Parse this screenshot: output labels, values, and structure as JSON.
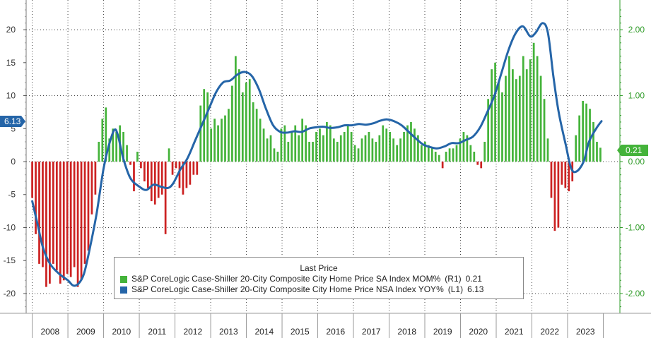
{
  "chart_data": {
    "type": "bar+line",
    "title": "",
    "years": [
      "2008",
      "2009",
      "2010",
      "2011",
      "2012",
      "2013",
      "2014",
      "2015",
      "2016",
      "2017",
      "2018",
      "2019",
      "2020",
      "2021",
      "2022",
      "2023"
    ],
    "left_axis": {
      "ticks": [
        20,
        15,
        10,
        5,
        0,
        -5,
        -10,
        -15,
        -20
      ],
      "tick_labels": [
        "20",
        "15",
        "10",
        "5",
        "0",
        "-5",
        "-10",
        "-15",
        "-20"
      ],
      "range": [
        -23,
        24.5
      ]
    },
    "right_axis": {
      "ticks": [
        2.0,
        1.0,
        0.0,
        -1.0,
        -2.0
      ],
      "tick_labels": [
        "2.00",
        "1.00",
        "0.00",
        "-1.00",
        "-2.00"
      ],
      "range": [
        -2.3,
        2.45
      ]
    },
    "legend": {
      "title": "Last Price",
      "items": [
        {
          "name": "S&P CoreLogic Case-Shiller 20-City Composite City Home Price SA Index MOM%",
          "axis": "(R1)",
          "last": "0.21",
          "color": "#44b33a"
        },
        {
          "name": "S&P CoreLogic Case-Shiller 20-City Composite City Home Price NSA Index YOY%",
          "axis": "(L1)",
          "last": "6.13",
          "color": "#2565a8"
        }
      ]
    },
    "series": [
      {
        "name": "MOM% (R1)",
        "axis": "right",
        "kind": "bar",
        "positive_color": "#44b33a",
        "negative_color": "#cc2222",
        "values": [
          -0.55,
          -1.1,
          -1.55,
          -1.6,
          -1.9,
          -1.85,
          -1.55,
          -1.65,
          -1.85,
          -1.8,
          -1.7,
          -1.75,
          -1.6,
          -1.9,
          -1.8,
          -1.55,
          -1.35,
          -0.8,
          -0.5,
          0.3,
          0.65,
          0.82,
          0.35,
          0.5,
          0.45,
          0.55,
          0.45,
          0.25,
          -0.05,
          -0.45,
          0.15,
          -0.1,
          -0.3,
          -0.4,
          -0.6,
          -0.65,
          -0.55,
          -0.5,
          -1.1,
          0.2,
          -0.2,
          -0.1,
          -0.4,
          -0.5,
          -0.4,
          -0.35,
          -0.2,
          -0.2,
          0.85,
          1.1,
          1.05,
          0.5,
          0.65,
          0.55,
          0.65,
          0.7,
          0.8,
          1.15,
          1.6,
          1.4,
          1.05,
          1.2,
          1.25,
          0.9,
          0.8,
          0.65,
          0.5,
          0.35,
          0.4,
          0.2,
          0.15,
          0.5,
          0.55,
          0.3,
          0.45,
          0.55,
          0.4,
          0.65,
          0.55,
          0.3,
          0.3,
          0.45,
          0.5,
          0.4,
          0.6,
          0.55,
          0.35,
          0.3,
          0.4,
          0.45,
          0.55,
          0.45,
          0.25,
          0.2,
          0.35,
          0.4,
          0.45,
          0.35,
          0.3,
          0.4,
          0.55,
          0.5,
          0.45,
          0.35,
          0.25,
          0.35,
          0.45,
          0.55,
          0.6,
          0.5,
          0.4,
          0.25,
          0.3,
          0.25,
          0.2,
          0.15,
          0.1,
          -0.1,
          0.15,
          0.2,
          0.2,
          0.25,
          0.35,
          0.45,
          0.4,
          0.25,
          0.15,
          -0.05,
          -0.1,
          0.3,
          0.95,
          1.4,
          1.5,
          1.2,
          1.05,
          1.3,
          1.6,
          1.4,
          1.25,
          1.3,
          1.6,
          1.4,
          1.55,
          1.8,
          1.6,
          1.3,
          0.95,
          0.35,
          -0.55,
          -1.05,
          -1.0,
          -0.35,
          -0.4,
          -0.45,
          -0.3,
          0.4,
          0.7,
          0.92,
          0.88,
          0.8,
          0.6,
          0.3,
          0.21
        ]
      },
      {
        "name": "YOY% (L1)",
        "axis": "left",
        "kind": "line",
        "color": "#2565a8",
        "points": [
          [
            2008.0,
            -6.0
          ],
          [
            2008.15,
            -9.5
          ],
          [
            2008.3,
            -13.0
          ],
          [
            2008.5,
            -15.5
          ],
          [
            2008.75,
            -17.0
          ],
          [
            2009.0,
            -18.0
          ],
          [
            2009.15,
            -18.8
          ],
          [
            2009.3,
            -18.5
          ],
          [
            2009.45,
            -17.0
          ],
          [
            2009.6,
            -13.5
          ],
          [
            2009.8,
            -8.0
          ],
          [
            2010.0,
            -1.0
          ],
          [
            2010.15,
            2.5
          ],
          [
            2010.3,
            4.8
          ],
          [
            2010.4,
            4.0
          ],
          [
            2010.55,
            0.5
          ],
          [
            2010.75,
            -2.5
          ],
          [
            2011.0,
            -3.8
          ],
          [
            2011.2,
            -4.3
          ],
          [
            2011.4,
            -3.5
          ],
          [
            2011.6,
            -3.8
          ],
          [
            2011.8,
            -4.0
          ],
          [
            2011.95,
            -3.3
          ],
          [
            2012.15,
            -1.2
          ],
          [
            2012.35,
            0.5
          ],
          [
            2012.55,
            3.0
          ],
          [
            2012.75,
            5.5
          ],
          [
            2012.95,
            8.0
          ],
          [
            2013.15,
            10.5
          ],
          [
            2013.35,
            12.0
          ],
          [
            2013.55,
            12.3
          ],
          [
            2013.75,
            13.2
          ],
          [
            2013.95,
            13.6
          ],
          [
            2014.15,
            13.0
          ],
          [
            2014.35,
            11.0
          ],
          [
            2014.55,
            8.0
          ],
          [
            2014.75,
            5.5
          ],
          [
            2014.95,
            4.5
          ],
          [
            2015.15,
            4.4
          ],
          [
            2015.35,
            4.6
          ],
          [
            2015.55,
            4.5
          ],
          [
            2015.75,
            5.0
          ],
          [
            2015.95,
            5.2
          ],
          [
            2016.15,
            5.3
          ],
          [
            2016.35,
            5.1
          ],
          [
            2016.55,
            5.2
          ],
          [
            2016.75,
            5.5
          ],
          [
            2016.95,
            5.5
          ],
          [
            2017.15,
            5.7
          ],
          [
            2017.35,
            5.6
          ],
          [
            2017.55,
            5.8
          ],
          [
            2017.75,
            6.2
          ],
          [
            2017.95,
            6.4
          ],
          [
            2018.15,
            6.1
          ],
          [
            2018.35,
            5.5
          ],
          [
            2018.55,
            4.5
          ],
          [
            2018.75,
            3.5
          ],
          [
            2018.95,
            2.6
          ],
          [
            2019.15,
            2.2
          ],
          [
            2019.35,
            2.0
          ],
          [
            2019.55,
            2.3
          ],
          [
            2019.75,
            2.8
          ],
          [
            2019.95,
            2.8
          ],
          [
            2020.15,
            3.3
          ],
          [
            2020.35,
            3.8
          ],
          [
            2020.55,
            5.2
          ],
          [
            2020.75,
            7.5
          ],
          [
            2020.95,
            10.0
          ],
          [
            2021.15,
            13.5
          ],
          [
            2021.35,
            17.0
          ],
          [
            2021.55,
            19.5
          ],
          [
            2021.75,
            20.5
          ],
          [
            2021.95,
            19.0
          ],
          [
            2022.1,
            19.5
          ],
          [
            2022.3,
            21.0
          ],
          [
            2022.45,
            19.5
          ],
          [
            2022.6,
            13.0
          ],
          [
            2022.75,
            7.5
          ],
          [
            2022.95,
            2.5
          ],
          [
            2023.1,
            -1.0
          ],
          [
            2023.25,
            -1.5
          ],
          [
            2023.45,
            0.0
          ],
          [
            2023.6,
            3.0
          ],
          [
            2023.8,
            5.0
          ],
          [
            2023.95,
            6.13
          ]
        ]
      }
    ],
    "last_labels": {
      "left": "6.13",
      "right": "0.21"
    }
  }
}
